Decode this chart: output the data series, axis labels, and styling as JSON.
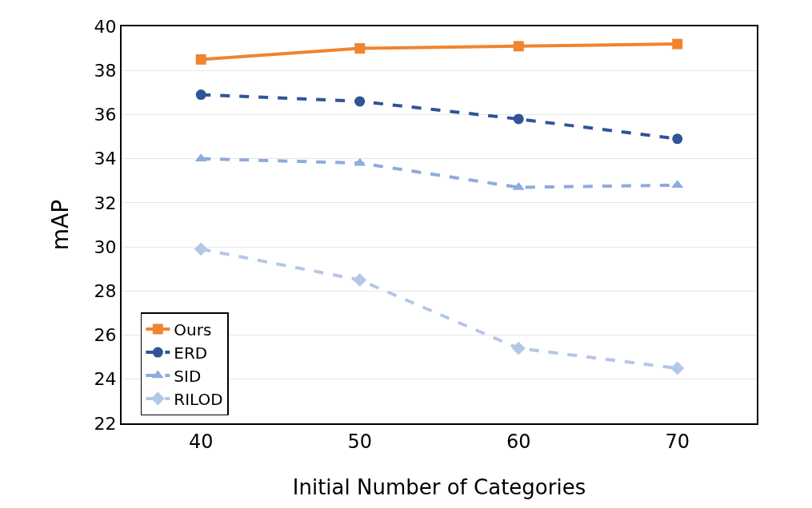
{
  "chart_data": {
    "type": "line",
    "xlabel": "Initial Number of Categories",
    "ylabel": "mAP",
    "x": [
      40,
      50,
      60,
      70
    ],
    "xlim": [
      35,
      75
    ],
    "xticks": [
      40,
      50,
      60,
      70
    ],
    "ylim": [
      22,
      40
    ],
    "yticks": [
      22,
      24,
      26,
      28,
      30,
      32,
      34,
      36,
      38,
      40
    ],
    "grid": "y",
    "legend": "bottom left",
    "series": [
      {
        "name": "Ours",
        "color": "#f0842f",
        "marker": "square",
        "line_style": "solid",
        "values": [
          38.5,
          39.0,
          39.1,
          39.2
        ]
      },
      {
        "name": "ERD",
        "color": "#2f5597",
        "marker": "circle",
        "line_style": "dashed",
        "values": [
          36.9,
          36.6,
          35.8,
          34.9
        ]
      },
      {
        "name": "SID",
        "color": "#8faadc",
        "marker": "triangle",
        "line_style": "dashed",
        "values": [
          34.0,
          33.8,
          32.7,
          32.8
        ]
      },
      {
        "name": "RILOD",
        "color": "#b4c7e7",
        "marker": "diamond",
        "line_style": "dashed",
        "values": [
          29.9,
          28.5,
          25.4,
          24.5
        ]
      }
    ]
  }
}
